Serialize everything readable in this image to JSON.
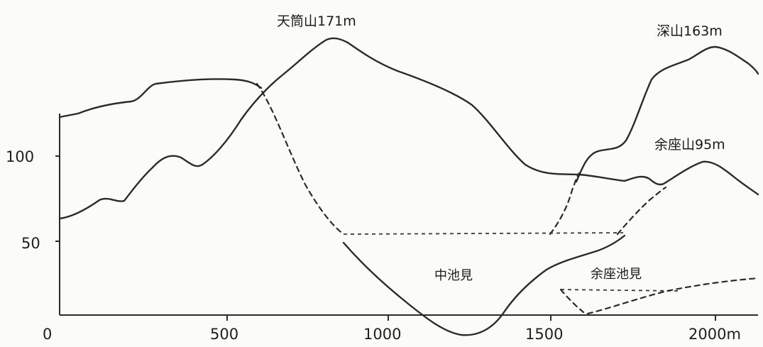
{
  "axes": {
    "x_ticks": [
      "0",
      "500",
      "1000",
      "1500",
      "2000m"
    ],
    "y_ticks": [
      "100",
      "50"
    ]
  },
  "peaks": {
    "amatsutsumi": "天筒山171m",
    "miyama": "深山163m",
    "yozayama": "余座山95m"
  },
  "areas": {
    "nakaikemi": "中池見",
    "yozaikemi": "余座池見"
  },
  "colors": {
    "ink": "#2b2b2b",
    "paper": "#fbfbfa"
  }
}
